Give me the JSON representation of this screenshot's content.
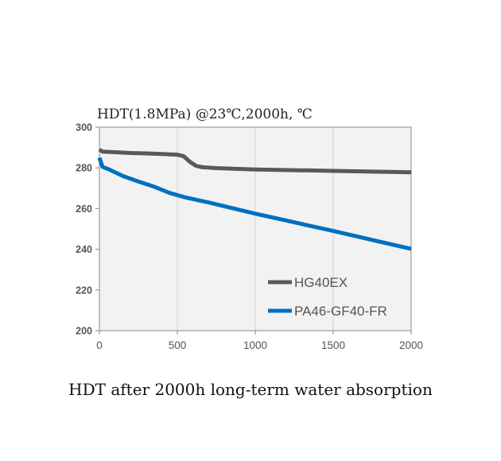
{
  "chart_data": {
    "type": "line",
    "title": "HDT(1.8MPa) @23℃,2000h, ℃",
    "xlabel": "",
    "ylabel": "",
    "xlim": [
      0,
      2000
    ],
    "ylim": [
      200,
      300
    ],
    "xticks": [
      0,
      500,
      1000,
      1500,
      2000
    ],
    "yticks": [
      200,
      220,
      240,
      260,
      280,
      300
    ],
    "grid": "vertical",
    "legend_position": "bottom-right",
    "series": [
      {
        "name": "HG40EX",
        "color": "#595959",
        "points": [
          [
            0,
            289
          ],
          [
            20,
            288
          ],
          [
            100,
            287.7
          ],
          [
            200,
            287.3
          ],
          [
            300,
            287.1
          ],
          [
            400,
            286.8
          ],
          [
            500,
            286.5
          ],
          [
            540,
            285.8
          ],
          [
            580,
            283
          ],
          [
            620,
            281
          ],
          [
            660,
            280.3
          ],
          [
            750,
            279.9
          ],
          [
            1000,
            279.2
          ],
          [
            1500,
            278.5
          ],
          [
            2000,
            277.8
          ]
        ]
      },
      {
        "name": "PA46-GF40-FR",
        "color": "#0070c0",
        "points": [
          [
            0,
            285
          ],
          [
            20,
            280.5
          ],
          [
            60,
            279.3
          ],
          [
            150,
            276
          ],
          [
            250,
            273.3
          ],
          [
            350,
            270.8
          ],
          [
            450,
            267.7
          ],
          [
            550,
            265.5
          ],
          [
            700,
            263
          ],
          [
            1000,
            257.5
          ],
          [
            1500,
            249
          ],
          [
            2000,
            240.2
          ]
        ]
      }
    ]
  },
  "caption": "HDT after 2000h long-term water absorption"
}
